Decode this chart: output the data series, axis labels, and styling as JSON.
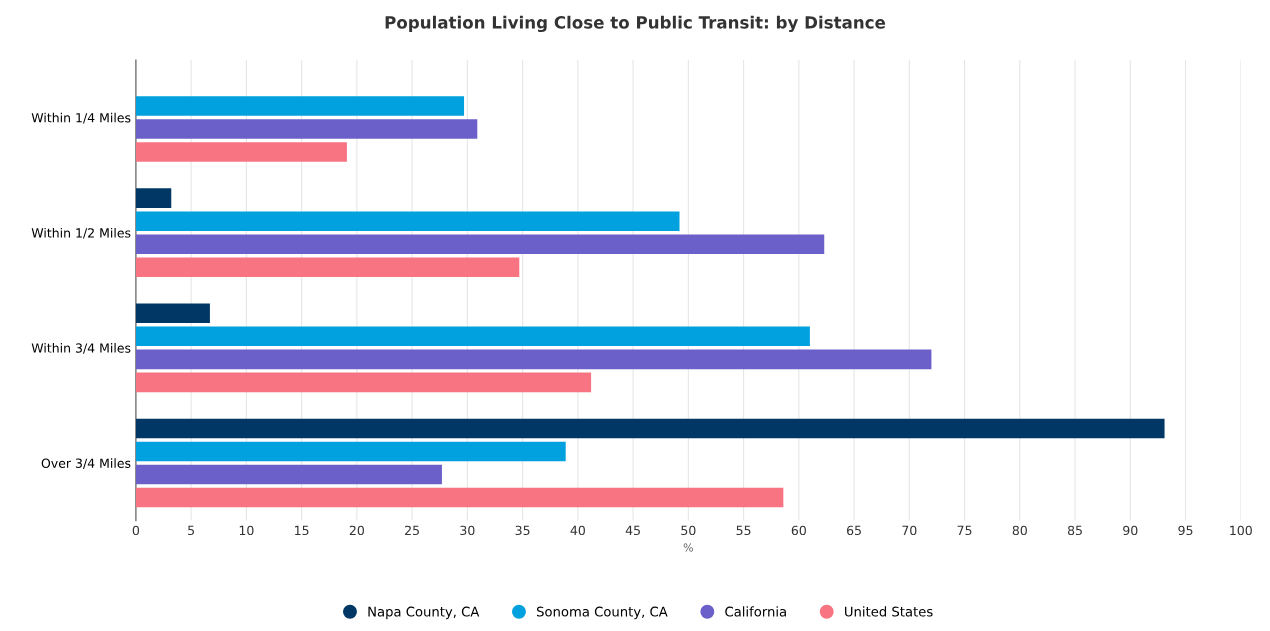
{
  "chart_data": {
    "type": "bar",
    "orientation": "horizontal",
    "title": "Population Living Close to Public Transit: by Distance",
    "xlabel": "%",
    "categories": [
      "Within 1/4 Miles",
      "Within 1/2 Miles",
      "Within 3/4 Miles",
      "Over 3/4 Miles"
    ],
    "series": [
      {
        "name": "Napa County, CA",
        "color": "#003764",
        "values": [
          0,
          3.2,
          6.7,
          93.1
        ]
      },
      {
        "name": "Sonoma County, CA",
        "color": "#00a1de",
        "values": [
          29.7,
          49.2,
          61.0,
          38.9
        ]
      },
      {
        "name": "California",
        "color": "#6b5fca",
        "values": [
          30.9,
          62.3,
          72.0,
          27.7
        ]
      },
      {
        "name": "United States",
        "color": "#f87482",
        "values": [
          19.1,
          34.7,
          41.2,
          58.6
        ]
      }
    ],
    "xlim": [
      0,
      100
    ],
    "xticks": [
      0,
      5,
      10,
      15,
      20,
      25,
      30,
      35,
      40,
      45,
      50,
      55,
      60,
      65,
      70,
      75,
      80,
      85,
      90,
      95,
      100
    ],
    "grid": "x",
    "legend": "bottom"
  }
}
